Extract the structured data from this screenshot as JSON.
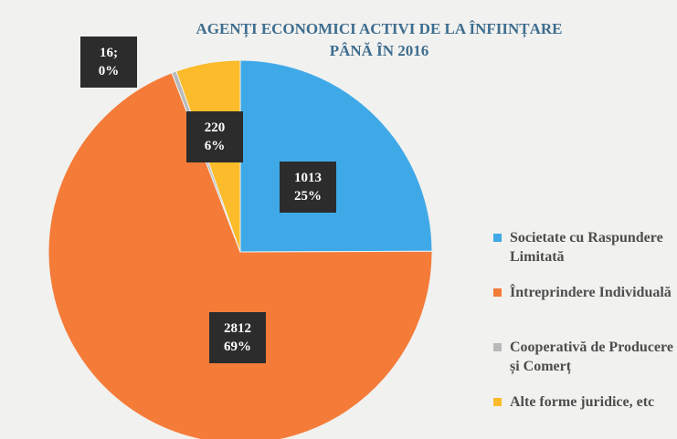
{
  "chart_data": {
    "type": "pie",
    "title": "AGENȚI ECONOMICI ACTIVI DE LA ÎNFIINȚARE PÂNĂ ÎN 2016",
    "categories": [
      "Societate cu Raspundere Limitată",
      "Întreprindere Individuală",
      "Cooperativă de Producere și Comerț",
      "Alte forme juridice, etc"
    ],
    "values": [
      1013,
      2812,
      16,
      220
    ],
    "value_labels": [
      "1013",
      "2812",
      "16;",
      "220"
    ],
    "percent_labels": [
      "25%",
      "69%",
      "0%",
      "6%"
    ],
    "colors": [
      "#3fa9e8",
      "#f47b38",
      "#b9b9b9",
      "#fbbb2a"
    ],
    "legend": "right"
  }
}
